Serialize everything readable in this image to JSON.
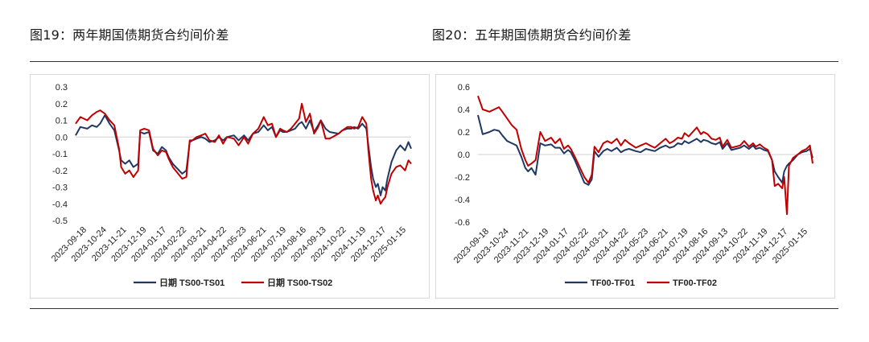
{
  "figures": [
    {
      "title": "图19：两年期国债期货合约间价差"
    },
    {
      "title": "图20：五年期国债期货合约间价差"
    }
  ],
  "colors": {
    "series1": "#1f3864",
    "series2": "#c00000"
  },
  "chart_data": [
    {
      "type": "line",
      "title": "",
      "ylim": [
        -0.5,
        0.3
      ],
      "yticks": [
        0.3,
        0.2,
        0.1,
        0.0,
        -0.1,
        -0.2,
        -0.3,
        -0.4,
        -0.5
      ],
      "ytick_labels": [
        "0.3",
        "0.2",
        "0.1",
        "0.0",
        "-0.1",
        "-0.2",
        "-0.3",
        "-0.4",
        "-0.5"
      ],
      "x_start": "2023-09-18",
      "x_end": "2025-01-24",
      "xtick_labels": [
        "2023-09-18",
        "2023-10-24",
        "2023-11-21",
        "2023-12-19",
        "2024-01-17",
        "2024-02-22",
        "2024-03-21",
        "2024-04-22",
        "2024-05-23",
        "2024-06-21",
        "2024-07-19",
        "2024-08-16",
        "2024-09-13",
        "2024-10-22",
        "2024-11-19",
        "2024-12-17",
        "2025-01-15"
      ],
      "legend_position": "bottom",
      "series": [
        {
          "name": "日期 TS00-TS01",
          "x": [
            "2023-09-18",
            "2023-09-25",
            "2023-10-05",
            "2023-10-12",
            "2023-10-19",
            "2023-10-24",
            "2023-10-31",
            "2023-11-07",
            "2023-11-14",
            "2023-11-21",
            "2023-11-24",
            "2023-11-30",
            "2023-12-06",
            "2023-12-12",
            "2023-12-19",
            "2023-12-22",
            "2023-12-28",
            "2024-01-04",
            "2024-01-10",
            "2024-01-17",
            "2024-01-23",
            "2024-01-29",
            "2024-02-02",
            "2024-02-08",
            "2024-02-22",
            "2024-02-28",
            "2024-03-04",
            "2024-03-08",
            "2024-03-14",
            "2024-03-21",
            "2024-03-27",
            "2024-04-02",
            "2024-04-10",
            "2024-04-16",
            "2024-04-22",
            "2024-04-28",
            "2024-05-08",
            "2024-05-15",
            "2024-05-23",
            "2024-05-29",
            "2024-06-05",
            "2024-06-13",
            "2024-06-21",
            "2024-06-27",
            "2024-07-03",
            "2024-07-09",
            "2024-07-15",
            "2024-07-19",
            "2024-07-25",
            "2024-07-31",
            "2024-08-06",
            "2024-08-12",
            "2024-08-16",
            "2024-08-22",
            "2024-08-28",
            "2024-09-03",
            "2024-09-09",
            "2024-09-13",
            "2024-09-20",
            "2024-09-26",
            "2024-10-09",
            "2024-10-15",
            "2024-10-22",
            "2024-10-28",
            "2024-11-01",
            "2024-11-07",
            "2024-11-13",
            "2024-11-19",
            "2024-11-22",
            "2024-11-26",
            "2024-11-29",
            "2024-12-03",
            "2024-12-06",
            "2024-12-10",
            "2024-12-13",
            "2024-12-17",
            "2024-12-20",
            "2024-12-26",
            "2025-01-02",
            "2025-01-08",
            "2025-01-15",
            "2025-01-20",
            "2025-01-24"
          ],
          "y": [
            0.01,
            0.06,
            0.05,
            0.07,
            0.06,
            0.08,
            0.13,
            0.08,
            0.04,
            -0.08,
            -0.14,
            -0.16,
            -0.14,
            -0.18,
            -0.16,
            0.03,
            0.02,
            0.03,
            -0.08,
            -0.1,
            -0.06,
            -0.08,
            -0.12,
            -0.16,
            -0.22,
            -0.2,
            -0.03,
            -0.02,
            -0.01,
            0.0,
            -0.01,
            -0.03,
            -0.02,
            0.0,
            -0.02,
            0.0,
            0.01,
            -0.02,
            0.01,
            -0.02,
            0.02,
            0.03,
            0.07,
            0.04,
            0.06,
            0.0,
            0.04,
            0.03,
            0.03,
            0.04,
            0.05,
            0.08,
            0.09,
            0.05,
            0.1,
            0.03,
            0.07,
            0.1,
            0.05,
            0.03,
            0.02,
            0.04,
            0.05,
            0.05,
            0.06,
            0.05,
            0.08,
            0.05,
            -0.05,
            -0.18,
            -0.25,
            -0.3,
            -0.28,
            -0.35,
            -0.3,
            -0.32,
            -0.25,
            -0.15,
            -0.08,
            -0.05,
            -0.08,
            -0.03,
            -0.07
          ]
        },
        {
          "name": "日期 TS00-TS02",
          "x": [
            "2023-09-18",
            "2023-09-25",
            "2023-10-05",
            "2023-10-12",
            "2023-10-19",
            "2023-10-24",
            "2023-10-31",
            "2023-11-07",
            "2023-11-14",
            "2023-11-21",
            "2023-11-24",
            "2023-11-30",
            "2023-12-06",
            "2023-12-12",
            "2023-12-19",
            "2023-12-22",
            "2023-12-28",
            "2024-01-04",
            "2024-01-10",
            "2024-01-17",
            "2024-01-23",
            "2024-01-29",
            "2024-02-02",
            "2024-02-08",
            "2024-02-22",
            "2024-02-28",
            "2024-03-04",
            "2024-03-08",
            "2024-03-14",
            "2024-03-21",
            "2024-03-27",
            "2024-04-02",
            "2024-04-10",
            "2024-04-16",
            "2024-04-22",
            "2024-04-28",
            "2024-05-08",
            "2024-05-15",
            "2024-05-23",
            "2024-05-29",
            "2024-06-05",
            "2024-06-13",
            "2024-06-21",
            "2024-06-27",
            "2024-07-03",
            "2024-07-09",
            "2024-07-15",
            "2024-07-19",
            "2024-07-25",
            "2024-07-31",
            "2024-08-06",
            "2024-08-12",
            "2024-08-16",
            "2024-08-22",
            "2024-08-28",
            "2024-09-03",
            "2024-09-09",
            "2024-09-13",
            "2024-09-20",
            "2024-09-26",
            "2024-10-09",
            "2024-10-15",
            "2024-10-22",
            "2024-10-28",
            "2024-11-01",
            "2024-11-07",
            "2024-11-13",
            "2024-11-19",
            "2024-11-22",
            "2024-11-26",
            "2024-11-29",
            "2024-12-03",
            "2024-12-06",
            "2024-12-10",
            "2024-12-13",
            "2024-12-17",
            "2024-12-20",
            "2024-12-26",
            "2025-01-02",
            "2025-01-08",
            "2025-01-15",
            "2025-01-20",
            "2025-01-24"
          ],
          "y": [
            0.08,
            0.12,
            0.1,
            0.13,
            0.15,
            0.16,
            0.14,
            0.1,
            0.07,
            -0.07,
            -0.18,
            -0.22,
            -0.2,
            -0.24,
            -0.2,
            0.04,
            0.05,
            0.04,
            -0.07,
            -0.11,
            -0.08,
            -0.09,
            -0.13,
            -0.18,
            -0.25,
            -0.24,
            -0.02,
            -0.02,
            0.0,
            0.01,
            0.02,
            -0.02,
            -0.03,
            0.01,
            -0.04,
            0.0,
            -0.01,
            -0.05,
            0.0,
            -0.04,
            0.02,
            0.05,
            0.12,
            0.07,
            0.08,
            0.0,
            0.05,
            0.04,
            0.03,
            0.05,
            0.08,
            0.11,
            0.2,
            0.09,
            0.14,
            0.02,
            0.06,
            0.1,
            -0.01,
            -0.01,
            0.02,
            0.04,
            0.06,
            0.06,
            0.05,
            0.06,
            0.12,
            0.08,
            -0.08,
            -0.25,
            -0.32,
            -0.38,
            -0.35,
            -0.4,
            -0.38,
            -0.36,
            -0.3,
            -0.22,
            -0.18,
            -0.17,
            -0.2,
            -0.14,
            -0.16
          ]
        }
      ]
    },
    {
      "type": "line",
      "title": "",
      "ylim": [
        -0.6,
        0.6
      ],
      "yticks": [
        0.6,
        0.4,
        0.2,
        0.0,
        -0.2,
        -0.4,
        -0.6
      ],
      "ytick_labels": [
        "0.6",
        "0.4",
        "0.2",
        "0.0",
        "-0.2",
        "-0.4",
        "-0.6"
      ],
      "x_start": "2023-09-18",
      "x_end": "2025-01-24",
      "xtick_labels": [
        "2023-09-18",
        "2023-10-24",
        "2023-11-21",
        "2023-12-19",
        "2024-01-17",
        "2024-02-22",
        "2024-03-21",
        "2024-04-22",
        "2024-05-23",
        "2024-06-21",
        "2024-07-19",
        "2024-08-16",
        "2024-09-13",
        "2024-10-22",
        "2024-11-19",
        "2024-12-17",
        "2025-01-15"
      ],
      "legend_position": "bottom",
      "series": [
        {
          "name": "TF00-TF01",
          "x": [
            "2023-09-18",
            "2023-09-25",
            "2023-10-05",
            "2023-10-12",
            "2023-10-19",
            "2023-10-24",
            "2023-10-31",
            "2023-11-07",
            "2023-11-14",
            "2023-11-21",
            "2023-11-27",
            "2023-12-01",
            "2023-12-06",
            "2023-12-12",
            "2023-12-19",
            "2023-12-26",
            "2024-01-04",
            "2024-01-10",
            "2024-01-17",
            "2024-01-23",
            "2024-01-29",
            "2024-02-02",
            "2024-02-08",
            "2024-02-22",
            "2024-02-28",
            "2024-03-04",
            "2024-03-08",
            "2024-03-14",
            "2024-03-21",
            "2024-03-27",
            "2024-04-02",
            "2024-04-10",
            "2024-04-16",
            "2024-04-22",
            "2024-04-28",
            "2024-05-08",
            "2024-05-15",
            "2024-05-23",
            "2024-05-29",
            "2024-06-05",
            "2024-06-13",
            "2024-06-21",
            "2024-06-27",
            "2024-07-03",
            "2024-07-09",
            "2024-07-15",
            "2024-07-19",
            "2024-07-25",
            "2024-07-31",
            "2024-08-06",
            "2024-08-12",
            "2024-08-16",
            "2024-08-22",
            "2024-08-28",
            "2024-09-03",
            "2024-09-09",
            "2024-09-13",
            "2024-09-20",
            "2024-09-26",
            "2024-10-09",
            "2024-10-15",
            "2024-10-22",
            "2024-10-28",
            "2024-11-01",
            "2024-11-07",
            "2024-11-13",
            "2024-11-19",
            "2024-11-25",
            "2024-11-29",
            "2024-12-04",
            "2024-12-10",
            "2024-12-13",
            "2024-12-17",
            "2024-12-20",
            "2024-12-26",
            "2025-01-02",
            "2025-01-08",
            "2025-01-15",
            "2025-01-20",
            "2025-01-24"
          ],
          "y": [
            0.35,
            0.18,
            0.2,
            0.22,
            0.21,
            0.17,
            0.12,
            0.1,
            0.08,
            -0.02,
            -0.12,
            -0.15,
            -0.12,
            -0.18,
            0.1,
            0.08,
            0.09,
            0.06,
            0.06,
            0.01,
            0.04,
            0.02,
            -0.05,
            -0.25,
            -0.27,
            -0.22,
            0.03,
            -0.02,
            0.03,
            0.05,
            0.03,
            0.06,
            0.02,
            0.04,
            0.05,
            0.03,
            0.02,
            0.05,
            0.04,
            0.03,
            0.06,
            0.08,
            0.06,
            0.07,
            0.1,
            0.09,
            0.12,
            0.1,
            0.12,
            0.14,
            0.11,
            0.13,
            0.12,
            0.1,
            0.09,
            0.11,
            0.05,
            0.1,
            0.04,
            0.06,
            0.08,
            0.05,
            0.08,
            0.05,
            0.06,
            0.04,
            0.03,
            -0.05,
            -0.15,
            -0.2,
            -0.25,
            -0.15,
            -0.1,
            -0.08,
            -0.05,
            0.0,
            0.02,
            0.03,
            0.05,
            -0.03
          ]
        },
        {
          "name": "TF00-TF02",
          "x": [
            "2023-09-18",
            "2023-09-25",
            "2023-10-05",
            "2023-10-12",
            "2023-10-19",
            "2023-10-24",
            "2023-10-31",
            "2023-11-07",
            "2023-11-14",
            "2023-11-21",
            "2023-11-27",
            "2023-12-01",
            "2023-12-06",
            "2023-12-12",
            "2023-12-19",
            "2023-12-26",
            "2024-01-04",
            "2024-01-10",
            "2024-01-17",
            "2024-01-23",
            "2024-01-29",
            "2024-02-02",
            "2024-02-08",
            "2024-02-22",
            "2024-02-28",
            "2024-03-04",
            "2024-03-08",
            "2024-03-14",
            "2024-03-21",
            "2024-03-27",
            "2024-04-02",
            "2024-04-10",
            "2024-04-16",
            "2024-04-22",
            "2024-04-28",
            "2024-05-08",
            "2024-05-15",
            "2024-05-23",
            "2024-05-29",
            "2024-06-05",
            "2024-06-13",
            "2024-06-21",
            "2024-06-27",
            "2024-07-03",
            "2024-07-09",
            "2024-07-15",
            "2024-07-19",
            "2024-07-25",
            "2024-07-31",
            "2024-08-06",
            "2024-08-12",
            "2024-08-16",
            "2024-08-22",
            "2024-08-28",
            "2024-09-03",
            "2024-09-09",
            "2024-09-13",
            "2024-09-20",
            "2024-09-26",
            "2024-10-09",
            "2024-10-15",
            "2024-10-22",
            "2024-10-28",
            "2024-11-01",
            "2024-11-07",
            "2024-11-13",
            "2024-11-19",
            "2024-11-25",
            "2024-11-29",
            "2024-12-04",
            "2024-12-10",
            "2024-12-13",
            "2024-12-17",
            "2024-12-20",
            "2024-12-26",
            "2025-01-02",
            "2025-01-08",
            "2025-01-15",
            "2025-01-20",
            "2025-01-24"
          ],
          "y": [
            0.52,
            0.4,
            0.38,
            0.4,
            0.42,
            0.38,
            0.32,
            0.26,
            0.22,
            0.05,
            -0.05,
            -0.1,
            -0.08,
            -0.05,
            0.2,
            0.12,
            0.15,
            0.1,
            0.14,
            0.05,
            0.08,
            0.05,
            -0.02,
            -0.2,
            -0.25,
            -0.18,
            0.07,
            0.02,
            0.1,
            0.12,
            0.1,
            0.14,
            0.08,
            0.13,
            0.1,
            0.06,
            0.08,
            0.1,
            0.08,
            0.06,
            0.1,
            0.14,
            0.1,
            0.12,
            0.15,
            0.14,
            0.19,
            0.16,
            0.2,
            0.24,
            0.18,
            0.2,
            0.18,
            0.14,
            0.13,
            0.15,
            0.07,
            0.13,
            0.06,
            0.08,
            0.12,
            0.07,
            0.1,
            0.07,
            0.09,
            0.06,
            0.04,
            -0.05,
            -0.28,
            -0.26,
            -0.3,
            -0.2,
            -0.53,
            -0.1,
            -0.03,
            0.0,
            0.03,
            0.05,
            0.08,
            -0.08
          ]
        }
      ]
    }
  ]
}
